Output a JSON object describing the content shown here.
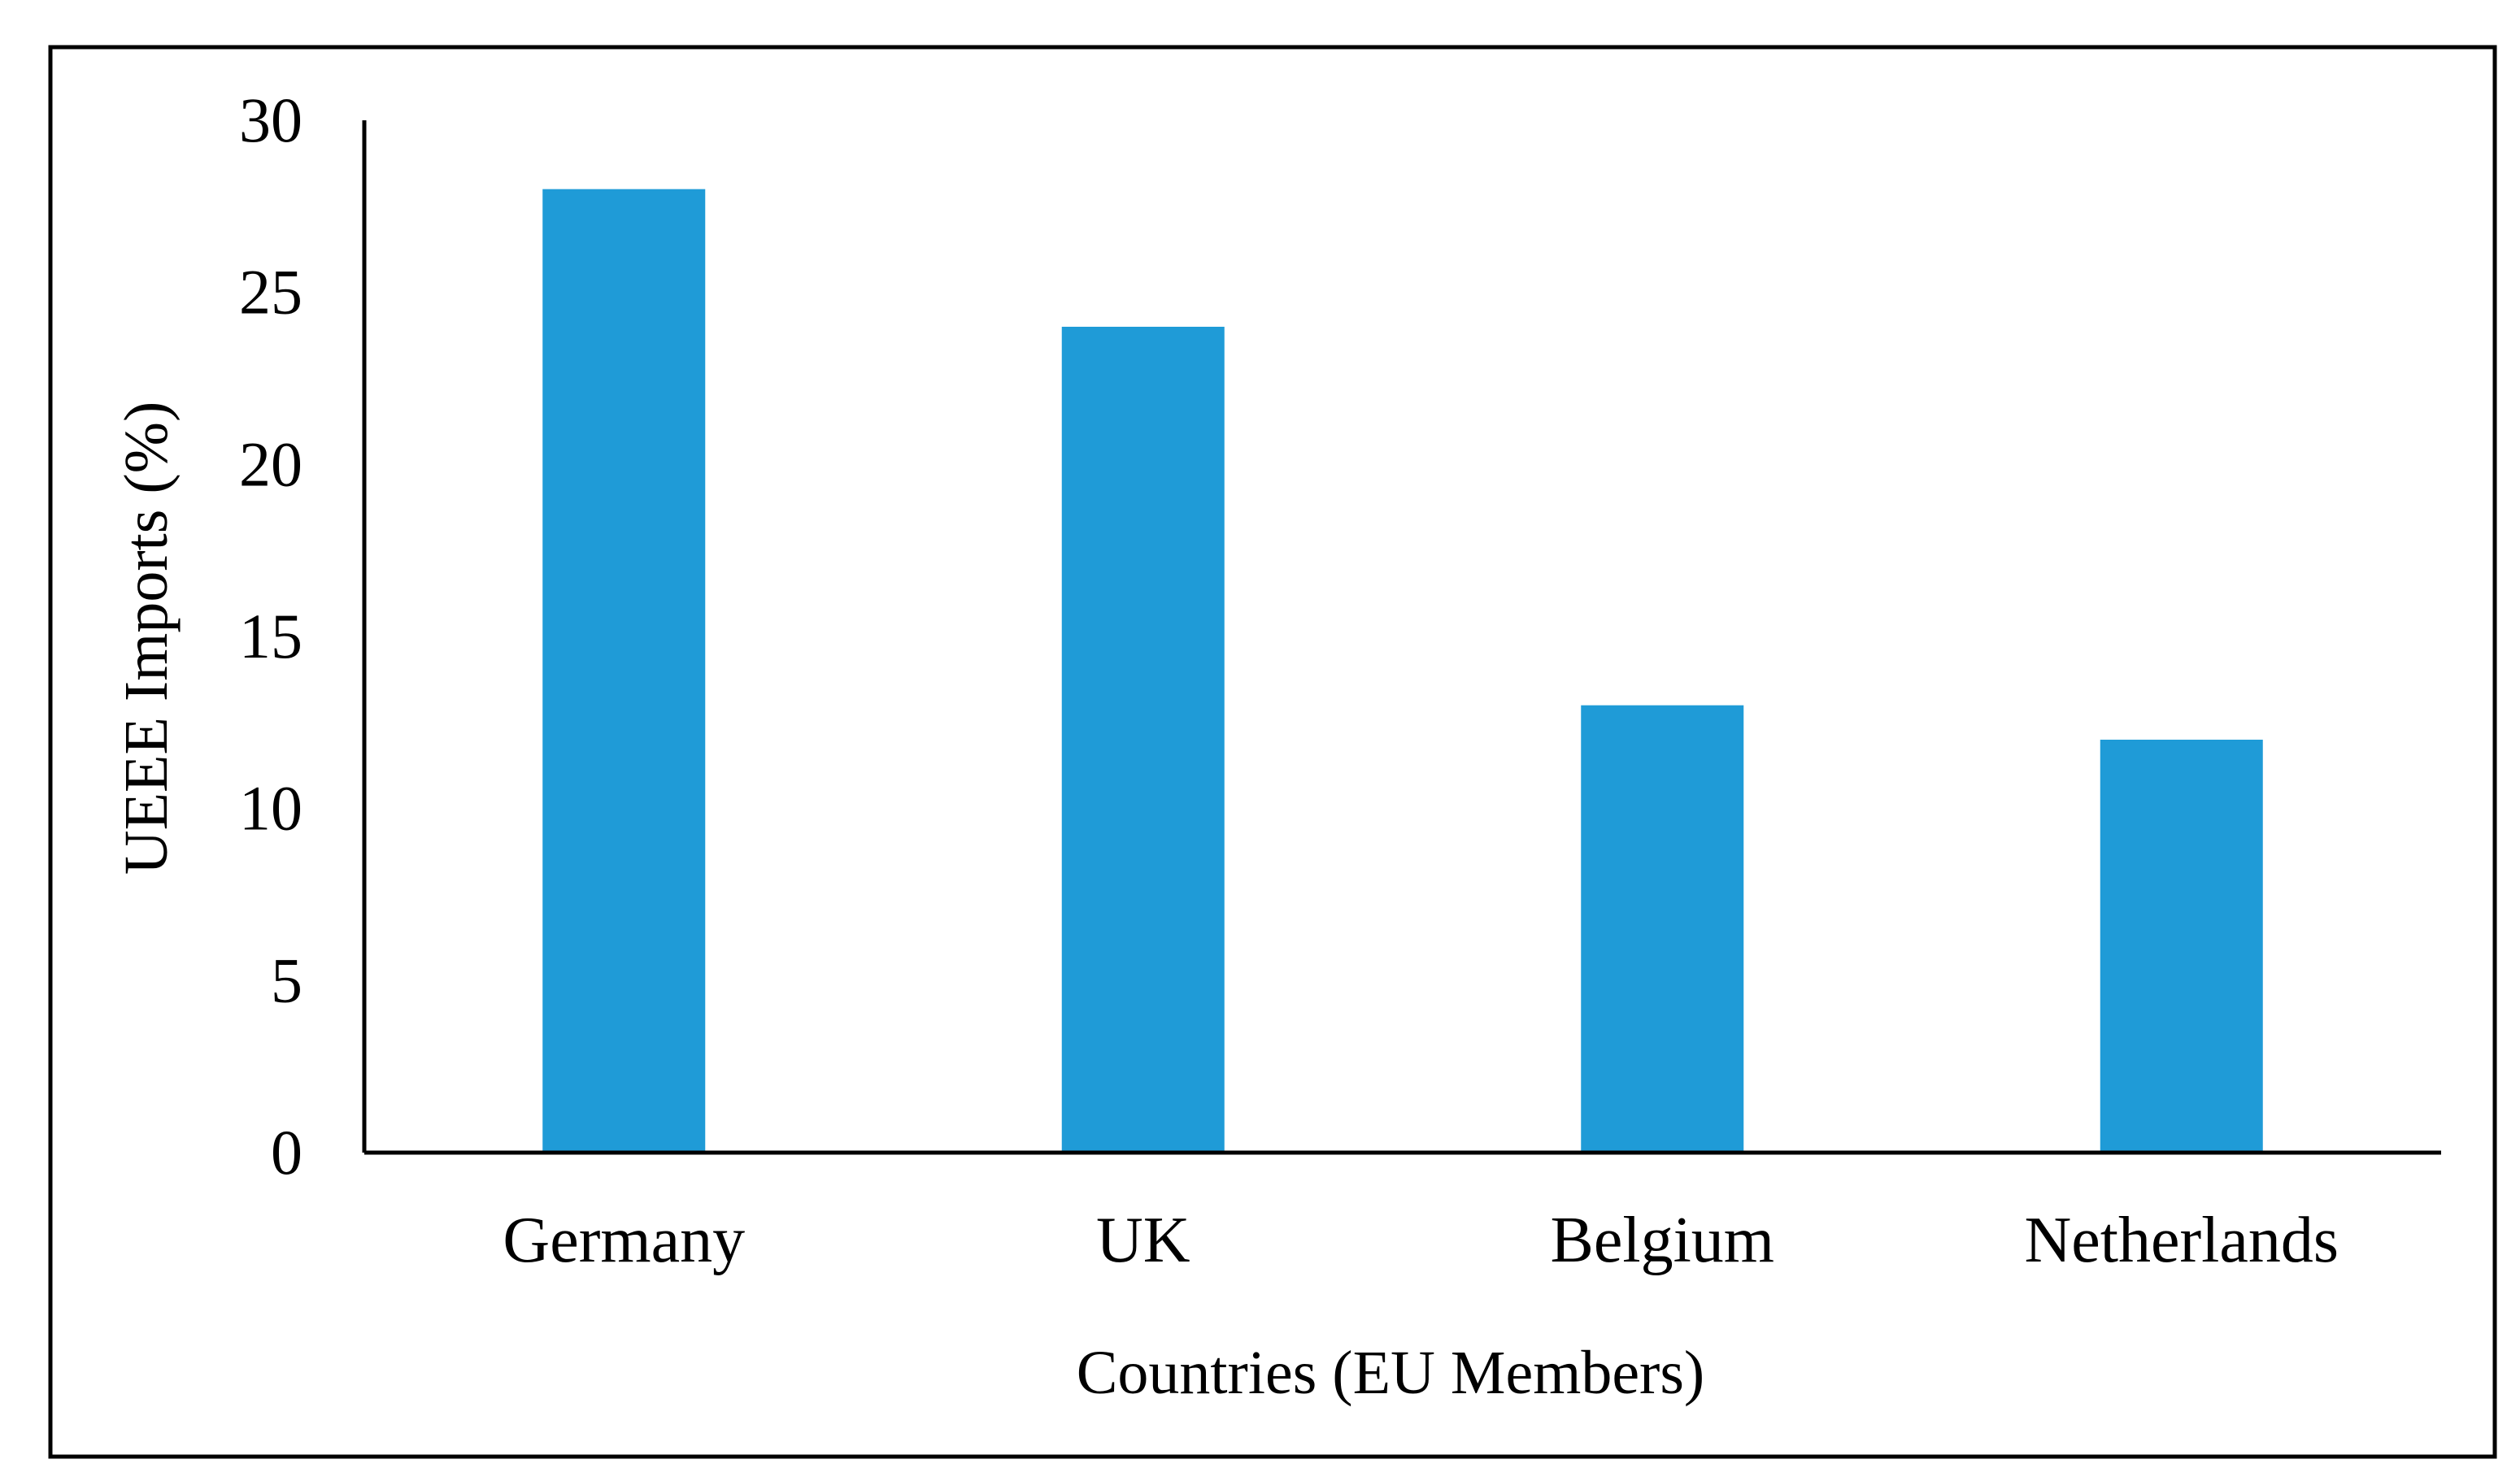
{
  "colors": {
    "bar": "#1f9bd7",
    "axis": "#000000",
    "frame": "#000000",
    "background": "#ffffff"
  },
  "chart_data": {
    "type": "bar",
    "categories": [
      "Germany",
      "UK",
      "Belgium",
      "Netherlands"
    ],
    "values": [
      28,
      24,
      13,
      12
    ],
    "title": "",
    "xlabel": "Countries (EU Members)",
    "ylabel": "UEEE Imports (%)",
    "ylim": [
      0,
      30
    ],
    "yticks": [
      0,
      5,
      10,
      15,
      20,
      25,
      30
    ],
    "grid": false,
    "legend": "none"
  }
}
